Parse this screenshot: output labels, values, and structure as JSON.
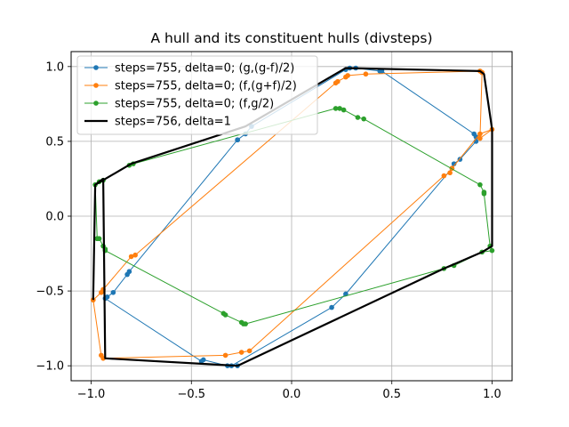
{
  "chart_data": {
    "type": "line",
    "title": "A hull and its constituent hulls (divsteps)",
    "xlabel": "",
    "ylabel": "",
    "xlim": [
      -1.1,
      1.1
    ],
    "ylim": [
      -1.1,
      1.1
    ],
    "xticks": [
      -1.0,
      -0.5,
      0.0,
      0.5,
      1.0
    ],
    "xtick_labels": [
      "−1.0",
      "−0.5",
      "0.0",
      "0.5",
      "1.0"
    ],
    "yticks": [
      -1.0,
      -0.5,
      0.0,
      0.5,
      1.0
    ],
    "ytick_labels": [
      "−1.0",
      "−0.5",
      "0.0",
      "0.5",
      "1.0"
    ],
    "grid": true,
    "legend_position": "upper-left",
    "series": [
      {
        "name": "steps=755, delta=0; (g,(g-f)/2)",
        "color": "#1f77b4",
        "marker": "circle",
        "line_width": 1,
        "x": [
          -0.27,
          -0.23,
          -0.2,
          0.27,
          0.29,
          0.32,
          0.44,
          0.45,
          0.91,
          0.92,
          0.92,
          0.84,
          0.81,
          0.8,
          0.27,
          0.2,
          -0.3,
          -0.27,
          -0.32,
          -0.44,
          -0.45,
          -0.93,
          -0.92,
          -0.89,
          -0.82,
          -0.81,
          -0.27
        ],
        "y": [
          0.51,
          0.55,
          0.6,
          0.98,
          0.99,
          0.99,
          0.97,
          0.97,
          0.55,
          0.53,
          0.5,
          0.38,
          0.35,
          0.32,
          -0.52,
          -0.61,
          -1.0,
          -1.0,
          -1.0,
          -0.96,
          -0.97,
          -0.55,
          -0.54,
          -0.51,
          -0.39,
          -0.37,
          0.51
        ]
      },
      {
        "name": "steps=755, delta=0; (f,(g+f)/2)",
        "color": "#ff7f0e",
        "marker": "circle",
        "line_width": 1,
        "x": [
          -0.99,
          -0.95,
          -0.94,
          -0.8,
          -0.78,
          0.22,
          0.23,
          0.27,
          0.28,
          0.37,
          0.94,
          0.95,
          0.95,
          0.94,
          1.0,
          0.94,
          0.8,
          0.79,
          0.76,
          -0.21,
          -0.25,
          -0.33,
          -0.94,
          -0.95,
          -0.99
        ],
        "y": [
          -0.56,
          -0.51,
          -0.49,
          -0.27,
          -0.26,
          0.89,
          0.9,
          0.93,
          0.94,
          0.95,
          0.97,
          0.96,
          0.96,
          0.52,
          0.58,
          0.55,
          0.32,
          0.29,
          0.27,
          -0.9,
          -0.91,
          -0.93,
          -0.95,
          -0.93,
          -0.56
        ]
      },
      {
        "name": "steps=755, delta=0; (f,g/2)",
        "color": "#2ca02c",
        "marker": "circle",
        "line_width": 1,
        "x": [
          -0.97,
          -0.96,
          -0.94,
          -0.93,
          -0.93,
          -0.34,
          -0.33,
          -0.25,
          -0.24,
          -0.23,
          0.76,
          0.81,
          0.95,
          1.0,
          0.99,
          0.96,
          0.96,
          0.94,
          0.36,
          0.33,
          0.26,
          0.24,
          0.22,
          -0.79,
          -0.81,
          -0.94,
          -0.96,
          -0.98,
          -0.97
        ],
        "y": [
          -0.15,
          -0.15,
          -0.2,
          -0.22,
          -0.23,
          -0.65,
          -0.66,
          -0.71,
          -0.72,
          -0.72,
          -0.35,
          -0.33,
          -0.24,
          -0.23,
          -0.2,
          0.15,
          0.16,
          0.21,
          0.65,
          0.66,
          0.71,
          0.72,
          0.72,
          0.35,
          0.34,
          0.24,
          0.23,
          0.21,
          -0.15
        ]
      },
      {
        "name": "steps=756, delta=1",
        "color": "#000000",
        "marker": "none",
        "line_width": 2.2,
        "x": [
          -0.99,
          -0.98,
          -0.95,
          -0.94,
          -0.93,
          -0.27,
          0.76,
          0.95,
          1.0,
          1.0,
          0.96,
          0.94,
          0.27,
          -0.23,
          -0.8,
          -0.98,
          -0.99
        ],
        "y": [
          -0.56,
          0.21,
          0.24,
          0.25,
          -0.95,
          -1.0,
          -0.35,
          -0.24,
          -0.2,
          0.58,
          0.95,
          0.97,
          0.99,
          0.6,
          0.35,
          0.21,
          -0.56
        ]
      }
    ]
  }
}
